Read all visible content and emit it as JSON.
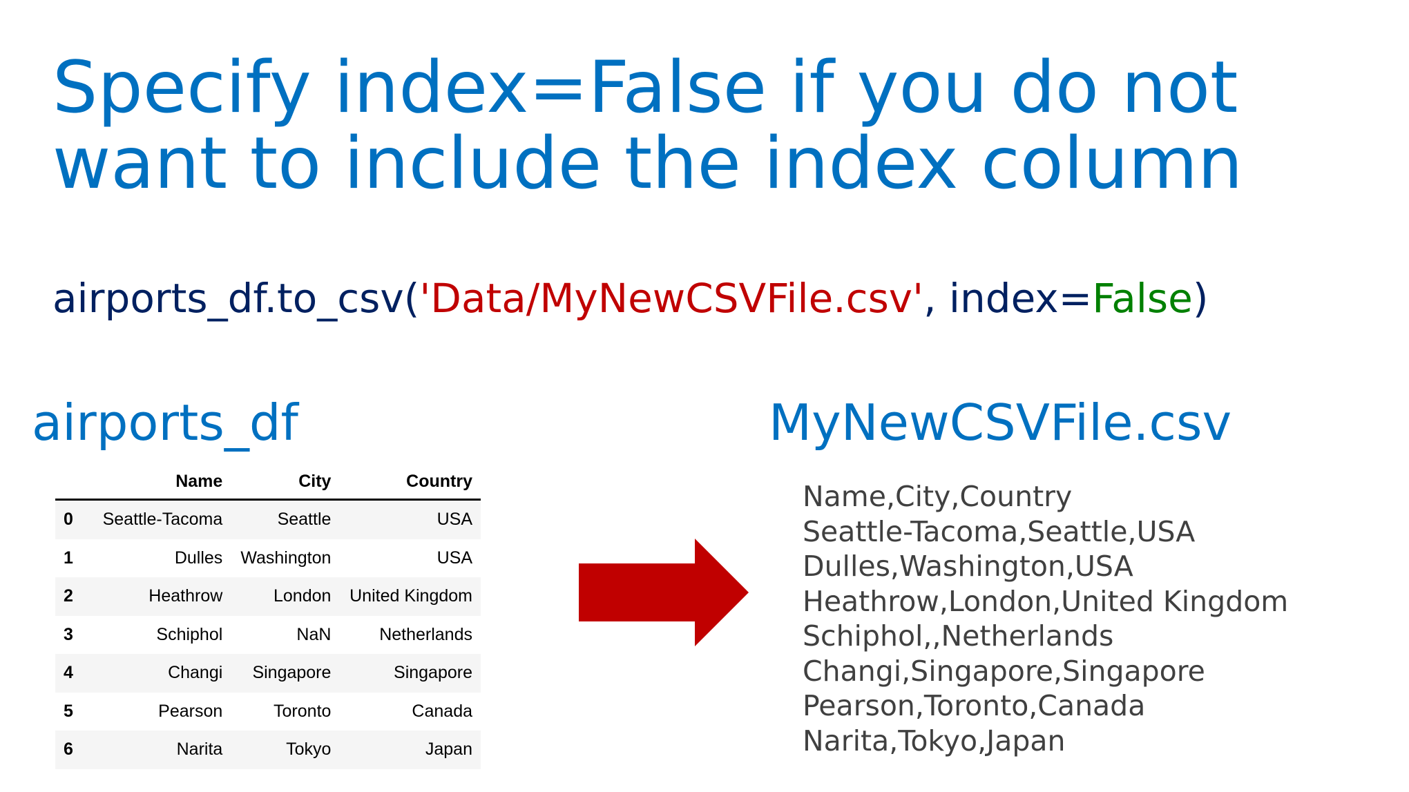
{
  "title": {
    "line1": "Specify index=False if you do not",
    "line2": "want to include the index column"
  },
  "code": {
    "prefix": "airports_df.to_csv(",
    "string_arg": "'Data/MyNewCSVFile.csv'",
    "middle": ", index=",
    "keyword": "False",
    "suffix": ")"
  },
  "left_heading": "airports_df",
  "right_heading": "MyNewCSVFile.csv",
  "dataframe": {
    "columns": [
      "",
      "Name",
      "City",
      "Country"
    ],
    "rows": [
      [
        "0",
        "Seattle-Tacoma",
        "Seattle",
        "USA"
      ],
      [
        "1",
        "Dulles",
        "Washington",
        "USA"
      ],
      [
        "2",
        "Heathrow",
        "London",
        "United Kingdom"
      ],
      [
        "3",
        "Schiphol",
        "NaN",
        "Netherlands"
      ],
      [
        "4",
        "Changi",
        "Singapore",
        "Singapore"
      ],
      [
        "5",
        "Pearson",
        "Toronto",
        "Canada"
      ],
      [
        "6",
        "Narita",
        "Tokyo",
        "Japan"
      ]
    ]
  },
  "csv_lines": [
    "Name,City,Country",
    "Seattle-Tacoma,Seattle,USA",
    "Dulles,Washington,USA",
    "Heathrow,London,United Kingdom",
    "Schiphol,,Netherlands",
    "Changi,Singapore,Singapore",
    "Pearson,Toronto,Canada",
    "Narita,Tokyo,Japan"
  ],
  "colors": {
    "title": "#0070c0",
    "code_text": "#002060",
    "code_string": "#c00000",
    "code_keyword": "#008000",
    "arrow": "#c00000",
    "csv_text": "#404040"
  },
  "icons": {
    "arrow": "right-arrow-icon"
  }
}
